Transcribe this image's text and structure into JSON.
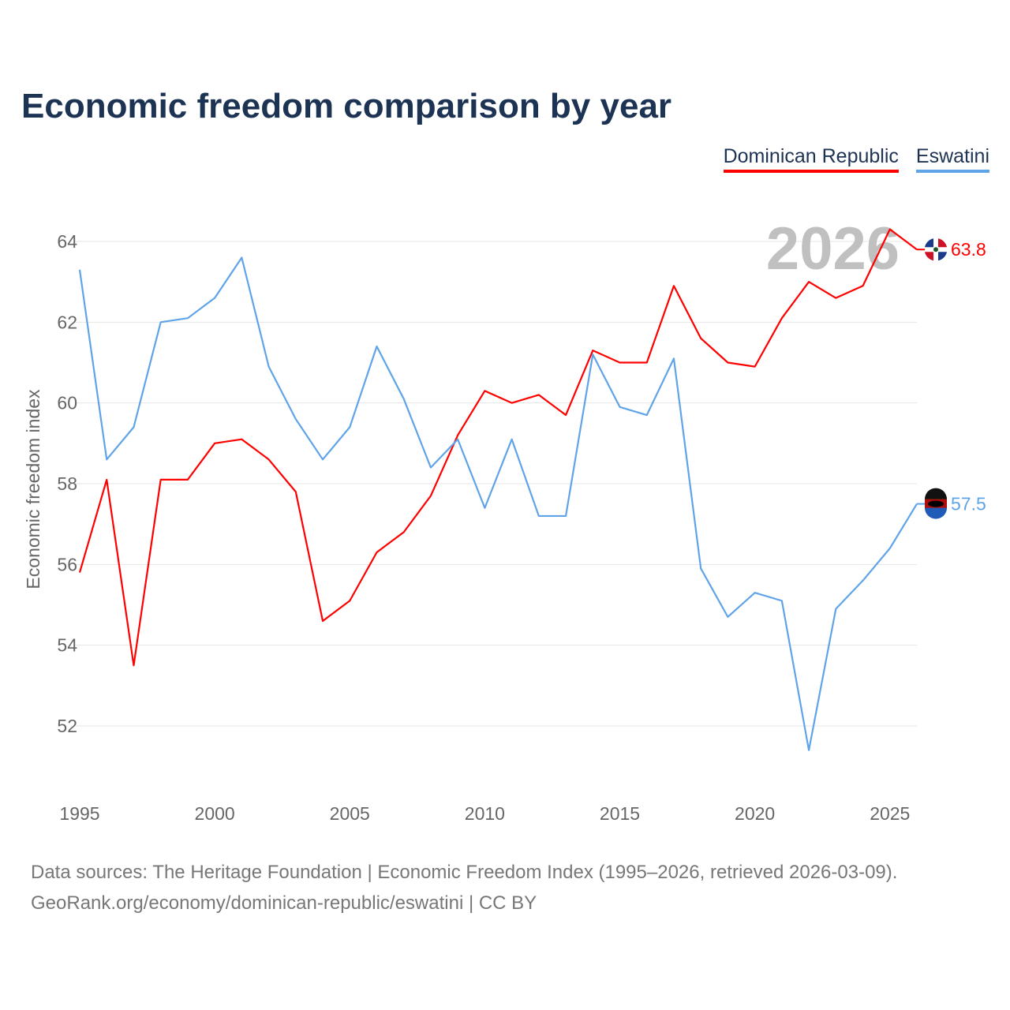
{
  "chart_data": {
    "type": "line",
    "title": "Economic freedom comparison by year",
    "ylabel": "Economic freedom index",
    "xlabel": "",
    "xlim": [
      1995,
      2026
    ],
    "ylim": [
      50.8,
      65.2
    ],
    "yticks": [
      52,
      54,
      56,
      58,
      60,
      62,
      64
    ],
    "xticks": [
      1995,
      2000,
      2005,
      2010,
      2015,
      2020,
      2025
    ],
    "grid": true,
    "legend_position": "top-right",
    "year_watermark": "2026",
    "x": [
      1995,
      1996,
      1997,
      1998,
      1999,
      2000,
      2001,
      2002,
      2003,
      2004,
      2005,
      2006,
      2007,
      2008,
      2009,
      2010,
      2011,
      2012,
      2013,
      2014,
      2015,
      2016,
      2017,
      2018,
      2019,
      2020,
      2021,
      2022,
      2023,
      2024,
      2025,
      2026
    ],
    "series": [
      {
        "name": "Dominican Republic",
        "color": "#ff0000",
        "end_label": "63.8",
        "values": [
          55.8,
          58.1,
          53.5,
          58.1,
          58.1,
          59.0,
          59.1,
          58.6,
          57.8,
          54.6,
          55.1,
          56.3,
          56.8,
          57.7,
          59.2,
          60.3,
          60.0,
          60.2,
          59.7,
          61.3,
          61.0,
          61.0,
          62.9,
          61.6,
          61.0,
          60.9,
          62.1,
          63.0,
          62.6,
          62.9,
          64.3,
          63.8
        ]
      },
      {
        "name": "Eswatini",
        "color": "#5fa4e8",
        "end_label": "57.5",
        "values": [
          63.3,
          58.6,
          59.4,
          62.0,
          62.1,
          62.6,
          63.6,
          60.9,
          59.6,
          58.6,
          59.4,
          61.4,
          60.1,
          58.4,
          59.1,
          57.4,
          59.1,
          57.2,
          57.2,
          61.2,
          59.9,
          59.7,
          61.1,
          55.9,
          54.7,
          55.3,
          55.1,
          51.4,
          54.9,
          55.6,
          56.4,
          57.5
        ]
      }
    ]
  },
  "footer": {
    "line1": "Data sources: The Heritage Foundation | Economic Freedom Index (1995–2026, retrieved 2026-03-09).",
    "line2": "GeoRank.org/economy/dominican-republic/eswatini | CC BY"
  }
}
